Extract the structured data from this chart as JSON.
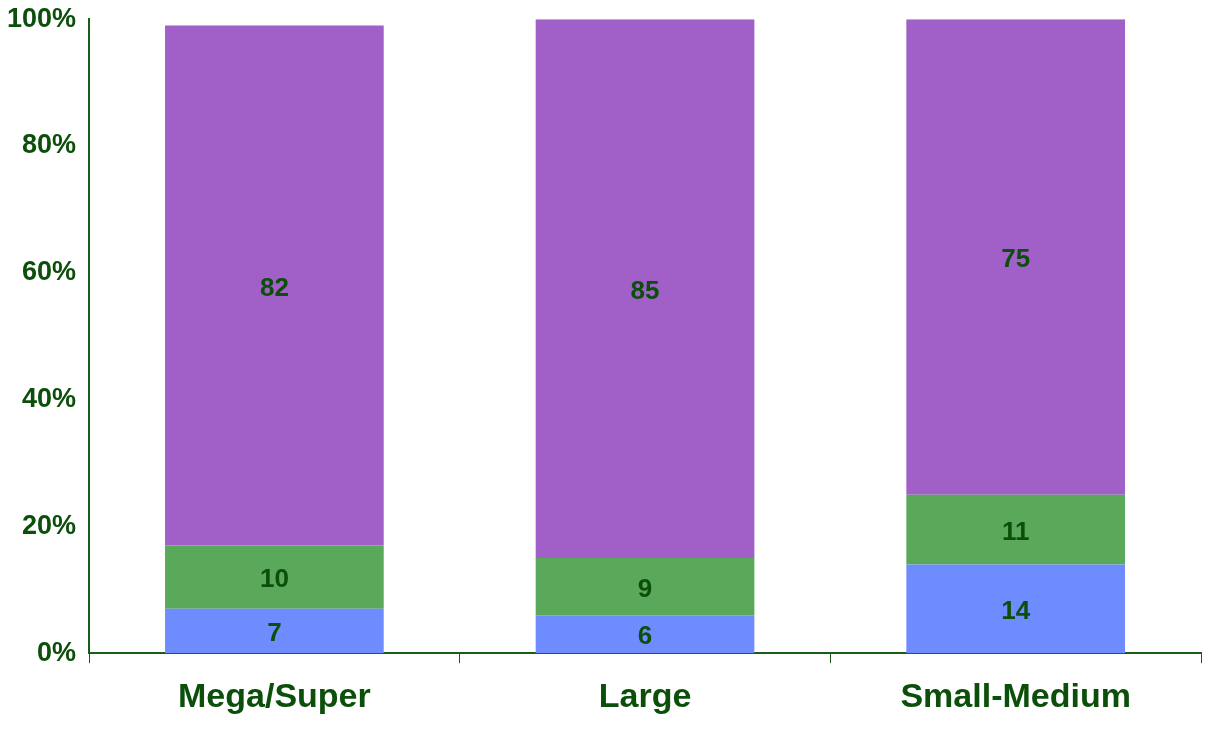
{
  "chart_data": {
    "type": "bar",
    "categories": [
      "Mega/Super",
      "Large",
      "Small-Medium"
    ],
    "stacked": true,
    "series": [
      {
        "color": "#6f8cff",
        "values": [
          7,
          6,
          14
        ]
      },
      {
        "color": "#5aa85a",
        "values": [
          10,
          9,
          11
        ]
      },
      {
        "color": "#a060c8",
        "values": [
          82,
          85,
          75
        ]
      }
    ],
    "ylim": [
      0,
      100
    ],
    "yticks": [
      {
        "value": 0,
        "label": "0%"
      },
      {
        "value": 20,
        "label": "20%"
      },
      {
        "value": 40,
        "label": "40%"
      },
      {
        "value": 60,
        "label": "60%"
      },
      {
        "value": 80,
        "label": "80%"
      },
      {
        "value": 100,
        "label": "100%"
      }
    ],
    "data_labels": true,
    "legend": false,
    "grid": false
  }
}
